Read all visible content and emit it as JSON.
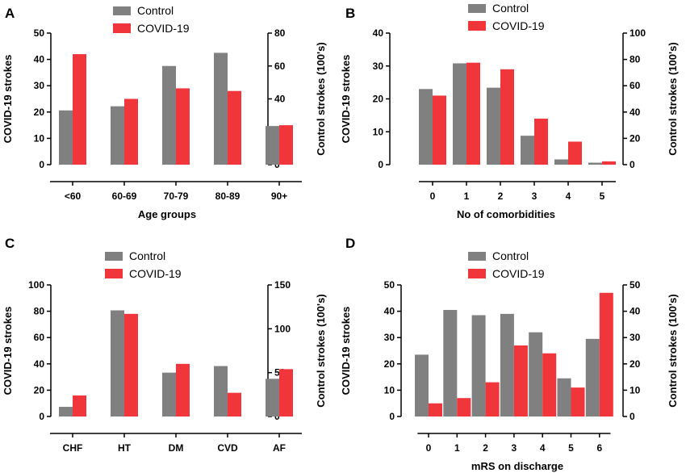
{
  "colors": {
    "control": "#808080",
    "covid": "#f0363a",
    "axis": "#000000"
  },
  "legend": {
    "control": "Control",
    "covid": "COVID-19"
  },
  "chart_data": [
    {
      "letter": "A",
      "type": "bar",
      "categories": [
        "<60",
        "60-69",
        "70-79",
        "80-89",
        "90+"
      ],
      "xlabel": "Age groups",
      "ylabel_left": "COVID-19 strokes",
      "ylabel_right": "Control strokes (100's)",
      "ylim_left": [
        0,
        50
      ],
      "yticks_left": [
        0,
        10,
        20,
        30,
        40,
        50
      ],
      "ylim_right": [
        0,
        80
      ],
      "yticks_right": [
        0,
        20,
        40,
        60,
        80
      ],
      "series": [
        {
          "name": "Control",
          "axis": "right",
          "values": [
            33,
            35.5,
            60,
            68,
            23.5
          ]
        },
        {
          "name": "COVID-19",
          "axis": "left",
          "values": [
            42,
            25,
            29,
            28,
            15
          ]
        }
      ],
      "legend_position": "top-center"
    },
    {
      "letter": "B",
      "type": "bar",
      "categories": [
        "0",
        "1",
        "2",
        "3",
        "4",
        "5"
      ],
      "xlabel": "No of comorbidities",
      "ylabel_left": "COVID-19 strokes",
      "ylabel_right": "Control strokes (100's)",
      "ylim_left": [
        0,
        40
      ],
      "yticks_left": [
        0,
        10,
        20,
        30,
        40
      ],
      "ylim_right": [
        0,
        100
      ],
      "yticks_right": [
        0,
        20,
        40,
        60,
        80,
        100
      ],
      "series": [
        {
          "name": "Control",
          "axis": "right",
          "values": [
            57.5,
            77,
            58.5,
            22,
            4,
            1.5
          ]
        },
        {
          "name": "COVID-19",
          "axis": "left",
          "values": [
            21,
            31,
            29,
            14,
            7,
            1
          ]
        }
      ],
      "legend_position": "top-center"
    },
    {
      "letter": "C",
      "type": "bar",
      "categories": [
        "CHF",
        "HT",
        "DM",
        "CVD",
        "AF"
      ],
      "xlabel": "",
      "ylabel_left": "COVID-19 strokes",
      "ylabel_right": "Control strokes (100's)",
      "ylim_left": [
        0,
        100
      ],
      "yticks_left": [
        0,
        20,
        40,
        60,
        80,
        100
      ],
      "ylim_right": [
        0,
        150
      ],
      "yticks_right": [
        0,
        50,
        100,
        150
      ],
      "series": [
        {
          "name": "Control",
          "axis": "right",
          "values": [
            11,
            121,
            50,
            57.5,
            43
          ]
        },
        {
          "name": "COVID-19",
          "axis": "left",
          "values": [
            16,
            78,
            40,
            18,
            36
          ]
        }
      ],
      "legend_position": "top-center"
    },
    {
      "letter": "D",
      "type": "bar",
      "categories": [
        "0",
        "1",
        "2",
        "3",
        "4",
        "5",
        "6"
      ],
      "xlabel": "mRS on discharge",
      "ylabel_left": "COVID-19 strokes",
      "ylabel_right": "Control strokes (100's)",
      "ylim_left": [
        0,
        50
      ],
      "yticks_left": [
        0,
        10,
        20,
        30,
        40,
        50
      ],
      "ylim_right": [
        0,
        50
      ],
      "yticks_right": [
        0,
        10,
        20,
        30,
        40,
        50
      ],
      "series": [
        {
          "name": "Control",
          "axis": "right",
          "values": [
            23.5,
            40.5,
            38.5,
            39,
            32,
            14.5,
            29.5
          ]
        },
        {
          "name": "COVID-19",
          "axis": "left",
          "values": [
            5,
            7,
            13,
            27,
            24,
            11,
            47
          ]
        }
      ],
      "legend_position": "top-center"
    }
  ]
}
